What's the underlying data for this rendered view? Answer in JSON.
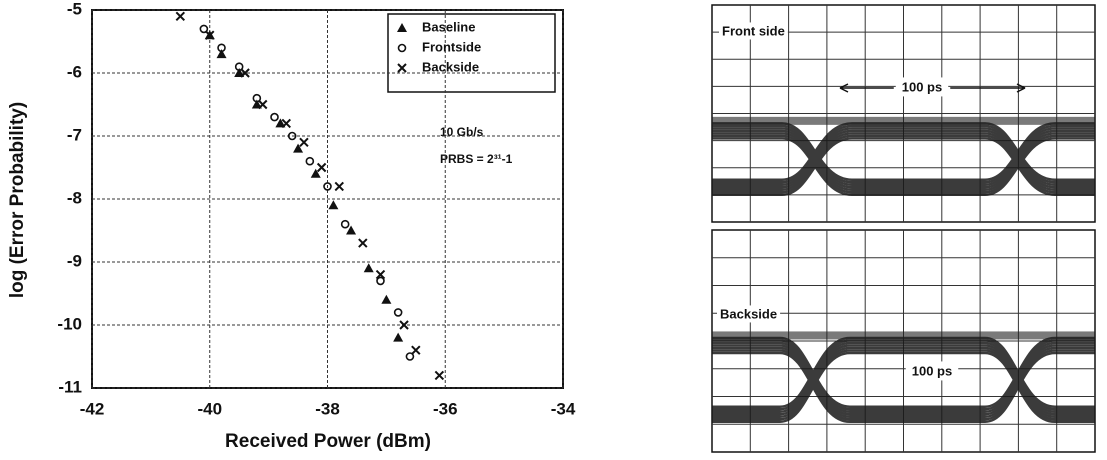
{
  "chart_data": {
    "type": "scatter",
    "xlabel": "Received Power (dBm)",
    "ylabel": "log (Error Probability)",
    "xlim": [
      -42,
      -34
    ],
    "xticks": [
      -42,
      -40,
      -38,
      -36,
      -34
    ],
    "ylim": [
      -11,
      -5
    ],
    "yticks": [
      -5,
      -6,
      -7,
      -8,
      -9,
      -10,
      -11
    ],
    "grid": true,
    "legend": "upper right",
    "annotations": [
      "10 Gb/s",
      "PRBS = 2³¹-1"
    ],
    "series": [
      {
        "name": "Baseline",
        "marker": "triangle",
        "color": "#111111",
        "x": [
          -40.0,
          -39.8,
          -39.5,
          -39.2,
          -38.8,
          -38.5,
          -38.2,
          -37.9,
          -37.6,
          -37.3,
          -37.0,
          -36.8
        ],
        "values": [
          -5.4,
          -5.7,
          -6.0,
          -6.5,
          -6.8,
          -7.2,
          -7.6,
          -8.1,
          -8.5,
          -9.1,
          -9.6,
          -10.2
        ]
      },
      {
        "name": "Frontside",
        "marker": "circle",
        "color": "#111111",
        "x": [
          -40.1,
          -39.8,
          -39.5,
          -39.2,
          -38.9,
          -38.6,
          -38.3,
          -38.0,
          -37.7,
          -37.1,
          -36.8,
          -36.6
        ],
        "values": [
          -5.3,
          -5.6,
          -5.9,
          -6.4,
          -6.7,
          -7.0,
          -7.4,
          -7.8,
          -8.4,
          -9.3,
          -9.8,
          -10.5
        ]
      },
      {
        "name": "Backside",
        "marker": "cross",
        "color": "#111111",
        "x": [
          -40.5,
          -40.0,
          -39.4,
          -39.1,
          -38.7,
          -38.4,
          -38.1,
          -37.8,
          -37.4,
          -37.1,
          -36.7,
          -36.5,
          -36.1
        ],
        "values": [
          -5.1,
          -5.4,
          -6.0,
          -6.5,
          -6.8,
          -7.1,
          -7.5,
          -7.8,
          -8.7,
          -9.2,
          -10.0,
          -10.4,
          -10.8
        ]
      }
    ]
  },
  "eye_diagrams": [
    {
      "label": "Front side",
      "annotation": "100 ps"
    },
    {
      "label": "Backside",
      "annotation": "100 ps"
    }
  ]
}
